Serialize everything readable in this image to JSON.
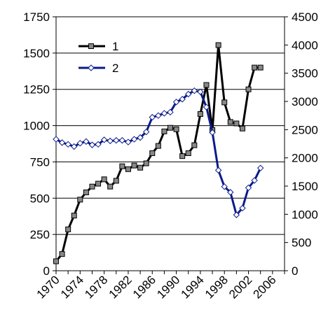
{
  "chart_data": {
    "type": "line",
    "xlim": [
      1970,
      2008
    ],
    "x_ticks": [
      1970,
      1974,
      1978,
      1982,
      1986,
      1990,
      1994,
      1998,
      2002,
      2006
    ],
    "y_left": {
      "min": 0,
      "max": 1750,
      "ticks": [
        0,
        250,
        500,
        750,
        1000,
        1250,
        1500,
        1750
      ]
    },
    "y_right": {
      "min": 0,
      "max": 4500,
      "ticks": [
        0,
        500,
        1000,
        1500,
        2000,
        2500,
        3000,
        3500,
        4000,
        4500
      ]
    },
    "grid": "horizontal",
    "legend_position": "top-left",
    "series": [
      {
        "name": "1",
        "axis": "left",
        "color": "#000000",
        "marker": "square",
        "x": [
          1970,
          1971,
          1972,
          1973,
          1974,
          1975,
          1976,
          1977,
          1978,
          1979,
          1980,
          1981,
          1982,
          1983,
          1984,
          1985,
          1986,
          1987,
          1988,
          1989,
          1990,
          1991,
          1992,
          1993,
          1994,
          1995,
          1996,
          1997,
          1998,
          1999,
          2000,
          2001,
          2002,
          2003,
          2004
        ],
        "values": [
          65,
          115,
          285,
          380,
          490,
          540,
          580,
          600,
          630,
          580,
          620,
          720,
          700,
          725,
          710,
          740,
          810,
          860,
          960,
          985,
          975,
          790,
          810,
          865,
          1080,
          1280,
          970,
          1555,
          1160,
          1025,
          1015,
          980,
          1250,
          1400,
          1400
        ]
      },
      {
        "name": "2",
        "axis": "right",
        "color": "#0a1a8c",
        "marker": "diamond",
        "x": [
          1970,
          1971,
          1972,
          1973,
          1974,
          1975,
          1976,
          1977,
          1978,
          1979,
          1980,
          1981,
          1982,
          1983,
          1984,
          1985,
          1986,
          1987,
          1988,
          1989,
          1990,
          1991,
          1992,
          1993,
          1994,
          1995,
          1996,
          1997,
          1998,
          1999,
          2000,
          2001,
          2002,
          2003,
          2004
        ],
        "values": [
          2330,
          2270,
          2240,
          2200,
          2260,
          2290,
          2230,
          2240,
          2320,
          2300,
          2310,
          2310,
          2280,
          2330,
          2360,
          2460,
          2720,
          2750,
          2790,
          2810,
          2990,
          3040,
          3130,
          3190,
          3170,
          2900,
          2450,
          1780,
          1490,
          1390,
          990,
          1110,
          1470,
          1600,
          1820
        ]
      }
    ]
  }
}
